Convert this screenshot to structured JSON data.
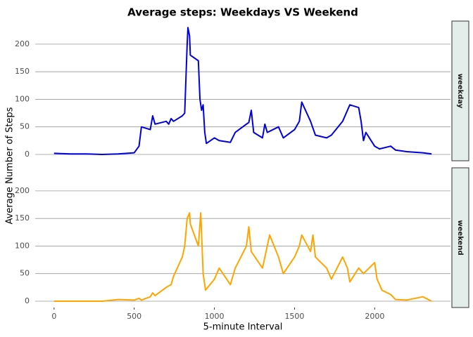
{
  "chart_data": {
    "type": "line",
    "title": "Average steps: Weekdays VS Weekend",
    "x_label": "5-minute Interval",
    "y_label": "Average Number of Steps",
    "facets": true,
    "grid": true,
    "xlim": [
      -117.75,
      2472.75
    ],
    "xticks": [
      0,
      500,
      1000,
      1500,
      2000
    ],
    "ylim": [
      -11.5,
      241.9
    ],
    "yticks": [
      0,
      50,
      100,
      150,
      200
    ],
    "series": [
      {
        "name": "weekday",
        "color": "#0000e0",
        "x": [
          0,
          100,
          200,
          300,
          400,
          500,
          530,
          545,
          600,
          615,
          630,
          700,
          715,
          730,
          745,
          800,
          815,
          830,
          835,
          845,
          850,
          900,
          910,
          920,
          930,
          940,
          950,
          1000,
          1030,
          1100,
          1130,
          1200,
          1215,
          1230,
          1245,
          1300,
          1315,
          1330,
          1400,
          1430,
          1500,
          1530,
          1545,
          1600,
          1630,
          1700,
          1730,
          1800,
          1830,
          1845,
          1900,
          1915,
          1930,
          1945,
          2000,
          2030,
          2100,
          2130,
          2200,
          2300,
          2355
        ],
        "values": [
          2,
          1,
          1,
          0,
          1,
          3,
          15,
          50,
          45,
          70,
          55,
          60,
          55,
          65,
          60,
          70,
          75,
          200,
          230,
          215,
          180,
          170,
          100,
          80,
          90,
          40,
          20,
          30,
          25,
          22,
          40,
          55,
          58,
          80,
          40,
          30,
          55,
          40,
          50,
          30,
          45,
          60,
          95,
          60,
          35,
          30,
          35,
          60,
          80,
          90,
          85,
          60,
          25,
          40,
          15,
          10,
          15,
          8,
          5,
          3,
          1
        ]
      },
      {
        "name": "weekend",
        "color": "#ffa500",
        "x": [
          0,
          100,
          200,
          300,
          400,
          500,
          530,
          545,
          600,
          615,
          630,
          700,
          730,
          745,
          800,
          815,
          830,
          845,
          850,
          900,
          915,
          930,
          945,
          1000,
          1030,
          1100,
          1130,
          1200,
          1215,
          1230,
          1300,
          1330,
          1345,
          1400,
          1430,
          1500,
          1530,
          1545,
          1600,
          1615,
          1630,
          1700,
          1730,
          1800,
          1830,
          1845,
          1900,
          1930,
          2000,
          2015,
          2030,
          2045,
          2100,
          2130,
          2200,
          2300,
          2355
        ],
        "values": [
          0,
          0,
          0,
          0,
          3,
          2,
          5,
          2,
          8,
          15,
          10,
          25,
          30,
          45,
          80,
          100,
          150,
          160,
          140,
          100,
          160,
          50,
          20,
          40,
          60,
          30,
          60,
          100,
          135,
          90,
          60,
          100,
          120,
          80,
          50,
          80,
          100,
          120,
          90,
          120,
          80,
          60,
          40,
          80,
          60,
          35,
          60,
          50,
          70,
          40,
          30,
          20,
          12,
          3,
          2,
          8,
          0
        ]
      }
    ]
  }
}
